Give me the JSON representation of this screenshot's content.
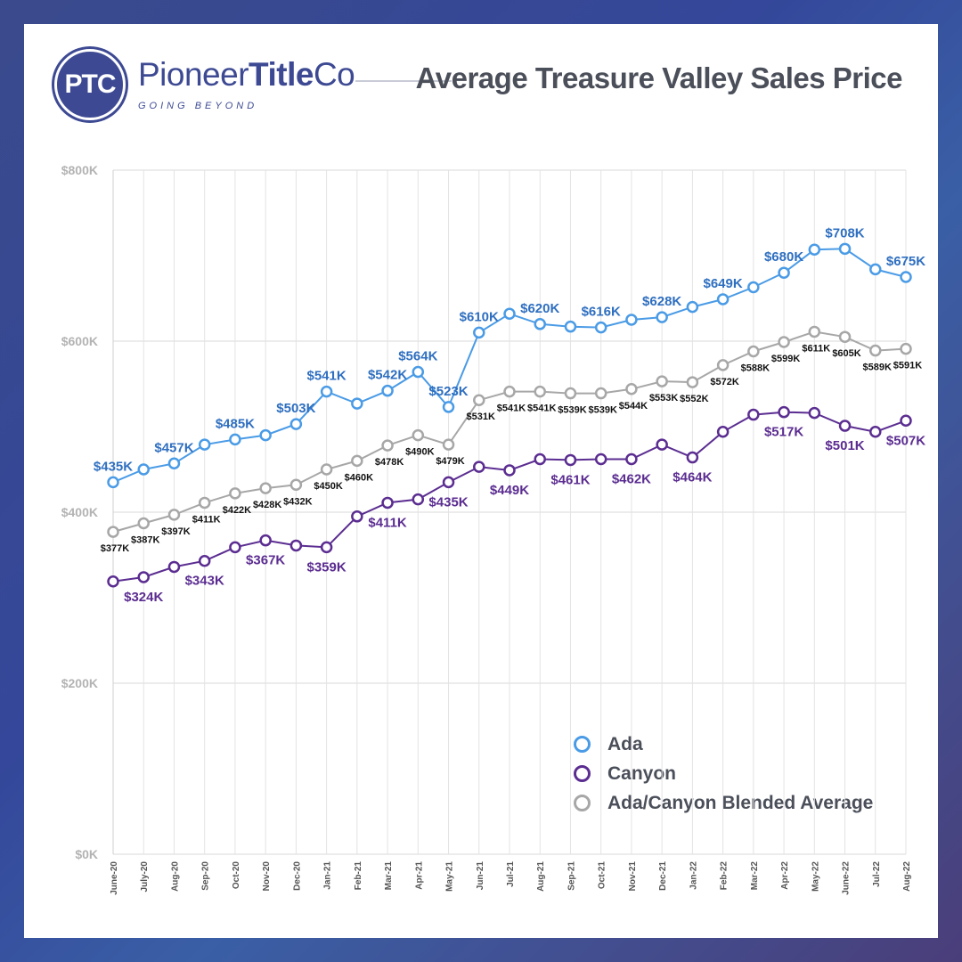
{
  "header": {
    "logo_mark": "PTC",
    "brand_regular": "Pioneer",
    "brand_bold": "Title",
    "brand_end": "Co",
    "tagline": "GOING BEYOND",
    "title": "Average Treasure Valley Sales Price"
  },
  "chart_data": {
    "type": "line",
    "title": "Average Treasure Valley Sales Price",
    "ylim": [
      0,
      800000
    ],
    "y_ticks": [
      "$0K",
      "$200K",
      "$400K",
      "$600K",
      "$800K"
    ],
    "y_tick_values": [
      0,
      200000,
      400000,
      600000,
      800000
    ],
    "grid": true,
    "legend_position": "bottom-right",
    "categories": [
      "June-20",
      "July-20",
      "Aug-20",
      "Sep-20",
      "Oct-20",
      "Nov-20",
      "Dec-20",
      "Jan-21",
      "Feb-21",
      "Mar-21",
      "Apr-21",
      "May-21",
      "Jun-21",
      "Jul-21",
      "Aug-21",
      "Sep-21",
      "Oct-21",
      "Nov-21",
      "Dec-21",
      "Jan-22",
      "Feb-22",
      "Mar-22",
      "Apr-22",
      "May-22",
      "June-22",
      "Jul-22",
      "Aug-22"
    ],
    "series": [
      {
        "name": "Ada",
        "color": "#4a9be6",
        "label_color": "#2f6fc0",
        "label_position": "above",
        "values": [
          435000,
          450000,
          457000,
          479000,
          485000,
          490000,
          503000,
          541000,
          527000,
          542000,
          564000,
          523000,
          610000,
          632000,
          620000,
          617000,
          616000,
          625000,
          628000,
          640000,
          649000,
          663000,
          680000,
          707000,
          708000,
          684000,
          675000
        ],
        "labels": [
          "$435K",
          null,
          "$457K",
          null,
          "$485K",
          null,
          "$503K",
          "$541K",
          null,
          "$542K",
          "$564K",
          "$523K",
          "$610K",
          null,
          "$620K",
          null,
          "$616K",
          null,
          "$628K",
          null,
          "$649K",
          null,
          "$680K",
          null,
          "$708K",
          null,
          "$675K"
        ]
      },
      {
        "name": "Canyon",
        "color": "#5b2d91",
        "label_color": "#5b2d91",
        "label_position": "below",
        "values": [
          319000,
          324000,
          336000,
          343000,
          359000,
          367000,
          361000,
          359000,
          395000,
          411000,
          415000,
          435000,
          453000,
          449000,
          462000,
          461000,
          462000,
          462000,
          479000,
          464000,
          494000,
          514000,
          517000,
          516000,
          501000,
          494000,
          507000
        ],
        "labels": [
          null,
          "$324K",
          null,
          "$343K",
          null,
          "$367K",
          null,
          "$359K",
          null,
          "$411K",
          null,
          "$435K",
          null,
          "$449K",
          null,
          "$461K",
          null,
          "$462K",
          null,
          "$464K",
          null,
          null,
          "$517K",
          null,
          "$501K",
          null,
          "$507K"
        ]
      },
      {
        "name": "Ada/Canyon Blended Average",
        "color": "#a7a7a7",
        "label_color": "#111111",
        "label_position": "below",
        "values": [
          377000,
          387000,
          397000,
          411000,
          422000,
          428000,
          432000,
          450000,
          460000,
          478000,
          490000,
          479000,
          531000,
          541000,
          541000,
          539000,
          539000,
          544000,
          553000,
          552000,
          572000,
          588000,
          599000,
          611000,
          605000,
          589000,
          591000
        ],
        "labels": [
          "$377K",
          "$387K",
          "$397K",
          "$411K",
          "$422K",
          "$428K",
          "$432K",
          "$450K",
          "$460K",
          "$478K",
          "$490K",
          "$479K",
          "$531K",
          "$541K",
          "$541K",
          "$539K",
          "$539K",
          "$544K",
          "$553K",
          "$552K",
          "$572K",
          "$588K",
          "$599K",
          "$611K",
          "$605K",
          "$589K",
          "$591K"
        ]
      }
    ]
  }
}
